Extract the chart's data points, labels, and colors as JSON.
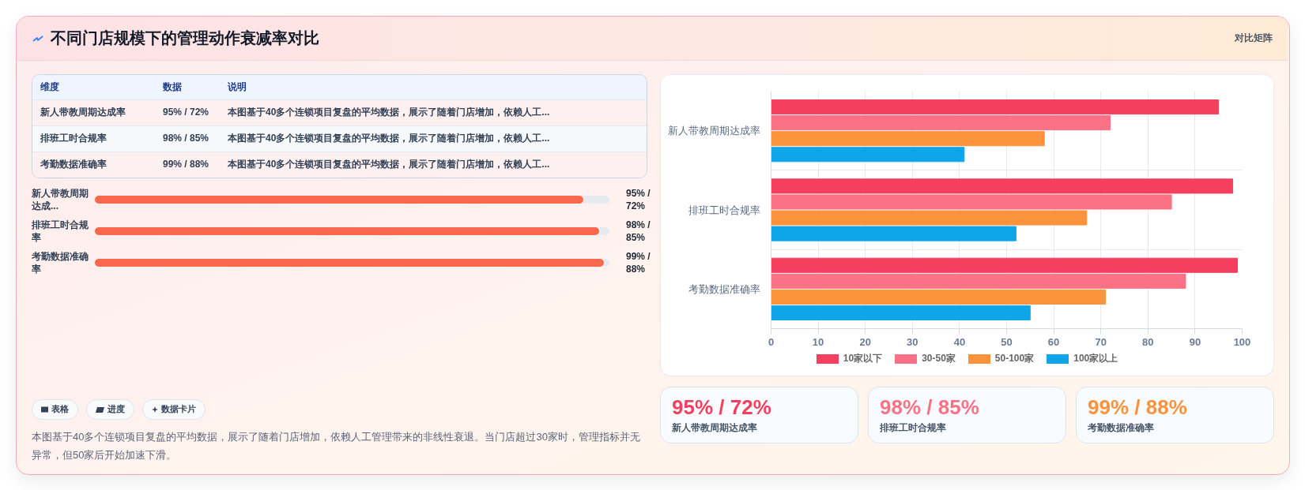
{
  "chart_data": [
    {
      "type": "other",
      "title": "不同门店规模下的管理动作衰减率对比",
      "subtitle": "对比矩阵",
      "annotations": [
        "维度",
        "数据",
        "说明",
        "新人带教周期达成率",
        "95% / 72%",
        "本图基于40多个连锁项目复盘的平均数据，展示了随着门店增加，依赖人工...",
        "排班工时合规率",
        "98% / 85%",
        "本图基于40多个连锁项目复盘的平均数据，展示了随着门店增加，依赖人工...",
        "考勤数据准确率",
        "99% / 88%",
        "本图基于40多个连锁项目复盘的平均数据，展示了随着门店增加，依赖人工..."
      ]
    },
    {
      "type": "bar",
      "orientation": "horizontal",
      "categories": [
        "新人带教周期达成...",
        "排班工时合规率",
        "考勤数据准确率"
      ],
      "values": [
        95,
        98,
        99
      ],
      "value_labels": [
        "95% / 72%",
        "98% / 85%",
        "99% / 88%"
      ],
      "color": "#f8684d",
      "xlim": [
        0,
        100
      ],
      "tick_labels": "y"
    },
    {
      "type": "other",
      "annotations": [
        "表格",
        "进度",
        "数据卡片",
        "本图基于40多个连锁项目复盘的平均数据，展示了随着门店增加，依赖人工管理带来的非线性衰退。当门店超过30家时，管理指标并无异常，但50家后开始加速下滑。"
      ]
    },
    {
      "type": "bar",
      "orientation": "horizontal",
      "categories": [
        "新人带教周期达成率",
        "排班工时合规率",
        "考勤数据准确率"
      ],
      "series": [
        {
          "name": "10家以下",
          "color": "#f43f5e",
          "values": [
            95,
            98,
            99
          ]
        },
        {
          "name": "30-50家",
          "color": "#fb7185",
          "values": [
            72,
            85,
            88
          ]
        },
        {
          "name": "50-100家",
          "color": "#fb923c",
          "values": [
            58,
            67,
            71
          ]
        },
        {
          "name": "100家以上",
          "color": "#0ea5e9",
          "values": [
            41,
            52,
            55
          ]
        }
      ],
      "xlim": [
        0,
        100
      ],
      "xticks": [
        0,
        10,
        20,
        30,
        40,
        50,
        60,
        70,
        80,
        90,
        100
      ],
      "grid": true,
      "legend": "bottom"
    },
    {
      "type": "other",
      "annotations": [
        "95% / 72%",
        "新人带教周期达成率",
        "98% / 85%",
        "排班工时合规率",
        "99% / 88%",
        "考勤数据准确率"
      ],
      "colors": [
        "#f43f5e",
        "#fb7185",
        "#fb923c"
      ]
    }
  ]
}
